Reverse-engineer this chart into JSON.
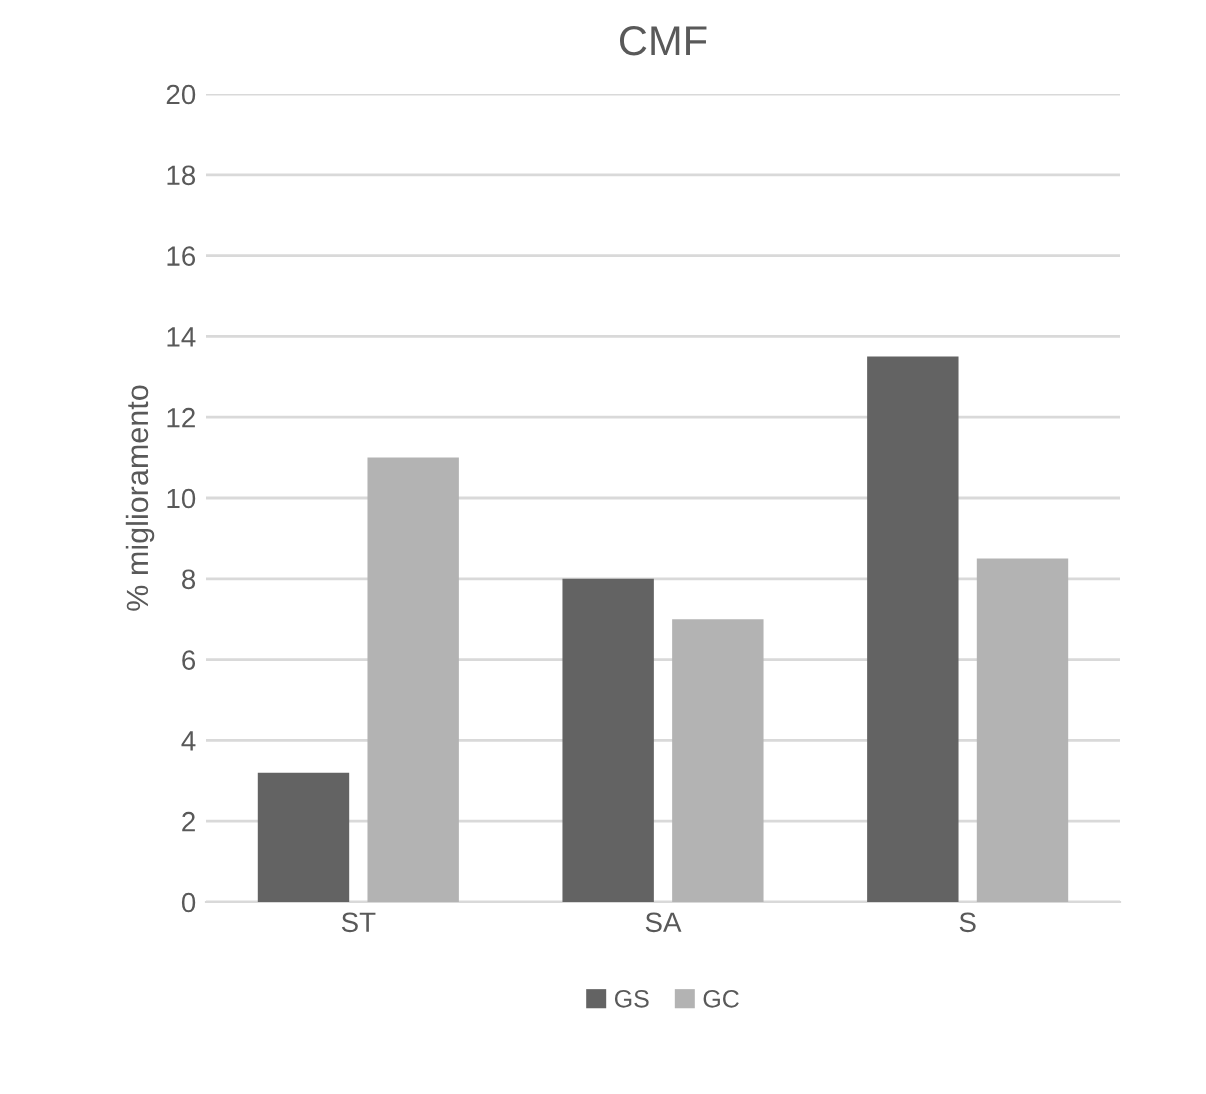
{
  "chart_data": {
    "type": "bar",
    "title": "CMF",
    "ylabel": "% miglioramento",
    "categories": [
      "ST",
      "SA",
      "S"
    ],
    "series": [
      {
        "name": "GS",
        "color": "#636363",
        "values": [
          3.2,
          8,
          13.5
        ]
      },
      {
        "name": "GC",
        "color": "#b3b3b3",
        "values": [
          11,
          7,
          8.5
        ]
      }
    ],
    "ylim": [
      0,
      20
    ],
    "yticks": [
      0,
      2,
      4,
      6,
      8,
      10,
      12,
      14,
      16,
      18,
      20
    ],
    "grid": "y",
    "legend": "bottom"
  }
}
